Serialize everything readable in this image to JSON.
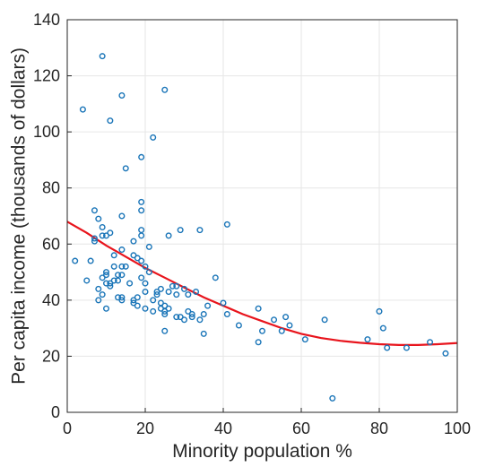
{
  "chart_data": {
    "type": "scatter",
    "xlabel": "Minority population %",
    "ylabel": "Per capita income (thousands of dollars)",
    "xlim": [
      0,
      100
    ],
    "ylim": [
      0,
      140
    ],
    "x_ticks": [
      "0",
      "20",
      "40",
      "60",
      "80",
      "100"
    ],
    "y_ticks": [
      "0",
      "20",
      "40",
      "60",
      "80",
      "100",
      "120",
      "140"
    ],
    "grid": true,
    "colors": {
      "points": "#1a75b8",
      "fit_line": "#e8141c",
      "axes": "#262626",
      "grid": "#e6e6e6"
    },
    "series": [
      {
        "type": "scatter",
        "points": [
          [
            2,
            54
          ],
          [
            4,
            108
          ],
          [
            5,
            47
          ],
          [
            6,
            54
          ],
          [
            7,
            72
          ],
          [
            7,
            61
          ],
          [
            7,
            62
          ],
          [
            8,
            69
          ],
          [
            8,
            40
          ],
          [
            8,
            44
          ],
          [
            9,
            127
          ],
          [
            9,
            63
          ],
          [
            9,
            66
          ],
          [
            9,
            48
          ],
          [
            9,
            42
          ],
          [
            10,
            63
          ],
          [
            10,
            50
          ],
          [
            10,
            49
          ],
          [
            10,
            46
          ],
          [
            10,
            37
          ],
          [
            11,
            104
          ],
          [
            11,
            64
          ],
          [
            11,
            45
          ],
          [
            11,
            46
          ],
          [
            12,
            56
          ],
          [
            12,
            52
          ],
          [
            12,
            47
          ],
          [
            13,
            49
          ],
          [
            13,
            47
          ],
          [
            13,
            41
          ],
          [
            14,
            113
          ],
          [
            14,
            70
          ],
          [
            14,
            58
          ],
          [
            14,
            52
          ],
          [
            14,
            49
          ],
          [
            14,
            40
          ],
          [
            14,
            41
          ],
          [
            15,
            87
          ],
          [
            15,
            52
          ],
          [
            16,
            46
          ],
          [
            17,
            61
          ],
          [
            17,
            56
          ],
          [
            17,
            40
          ],
          [
            17,
            39
          ],
          [
            18,
            55
          ],
          [
            18,
            41
          ],
          [
            18,
            38
          ],
          [
            19,
            91
          ],
          [
            19,
            75
          ],
          [
            19,
            72
          ],
          [
            19,
            65
          ],
          [
            19,
            63
          ],
          [
            19,
            54
          ],
          [
            19,
            48
          ],
          [
            20,
            52
          ],
          [
            20,
            46
          ],
          [
            20,
            43
          ],
          [
            20,
            37
          ],
          [
            21,
            59
          ],
          [
            21,
            50
          ],
          [
            22,
            98
          ],
          [
            22,
            36
          ],
          [
            22,
            40
          ],
          [
            23,
            43
          ],
          [
            23,
            42
          ],
          [
            24,
            44
          ],
          [
            24,
            37
          ],
          [
            24,
            39
          ],
          [
            25,
            115
          ],
          [
            25,
            29
          ],
          [
            25,
            35
          ],
          [
            25,
            36
          ],
          [
            25,
            38
          ],
          [
            26,
            63
          ],
          [
            26,
            43
          ],
          [
            26,
            37
          ],
          [
            27,
            45
          ],
          [
            28,
            45
          ],
          [
            28,
            42
          ],
          [
            28,
            34
          ],
          [
            29,
            65
          ],
          [
            29,
            34
          ],
          [
            30,
            44
          ],
          [
            30,
            33
          ],
          [
            31,
            42
          ],
          [
            31,
            36
          ],
          [
            32,
            35
          ],
          [
            32,
            34
          ],
          [
            33,
            43
          ],
          [
            34,
            65
          ],
          [
            34,
            33
          ],
          [
            35,
            28
          ],
          [
            35,
            35
          ],
          [
            36,
            38
          ],
          [
            38,
            48
          ],
          [
            40,
            39
          ],
          [
            41,
            67
          ],
          [
            41,
            35
          ],
          [
            44,
            31
          ],
          [
            49,
            37
          ],
          [
            49,
            25
          ],
          [
            50,
            29
          ],
          [
            53,
            33
          ],
          [
            55,
            29
          ],
          [
            56,
            34
          ],
          [
            57,
            31
          ],
          [
            61,
            26
          ],
          [
            66,
            33
          ],
          [
            68,
            5
          ],
          [
            77,
            26
          ],
          [
            80,
            36
          ],
          [
            81,
            30
          ],
          [
            82,
            23
          ],
          [
            87,
            23
          ],
          [
            93,
            25
          ],
          [
            97,
            21
          ]
        ]
      },
      {
        "type": "line",
        "points": [
          [
            0,
            68
          ],
          [
            5,
            64
          ],
          [
            10,
            59.5
          ],
          [
            15,
            55.5
          ],
          [
            20,
            51.5
          ],
          [
            25,
            48
          ],
          [
            30,
            44.5
          ],
          [
            35,
            41
          ],
          [
            40,
            38
          ],
          [
            45,
            35
          ],
          [
            50,
            32.5
          ],
          [
            55,
            30
          ],
          [
            60,
            28
          ],
          [
            65,
            26.5
          ],
          [
            70,
            25.5
          ],
          [
            75,
            24.8
          ],
          [
            80,
            24.3
          ],
          [
            85,
            24
          ],
          [
            90,
            24
          ],
          [
            95,
            24.3
          ],
          [
            100,
            24.7
          ]
        ]
      }
    ]
  }
}
